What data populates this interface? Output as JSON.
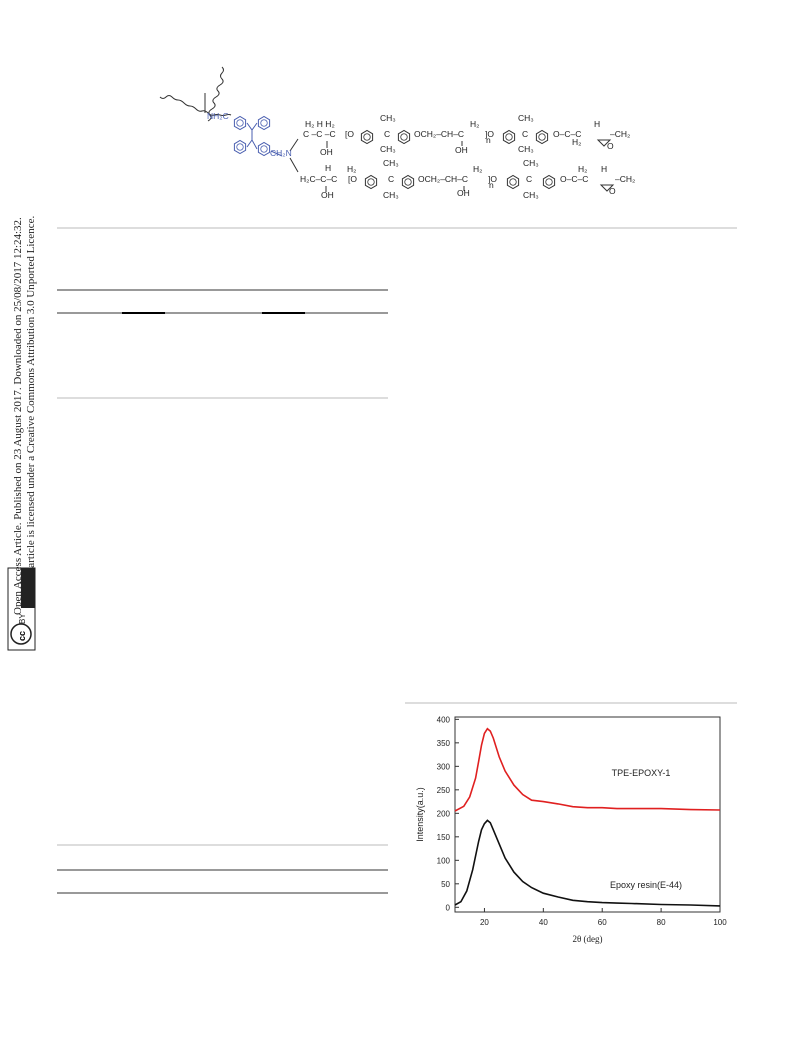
{
  "sidebar": {
    "line1": "Open Access Article. Published on 23 August 2017. Downloaded on 25/08/2017 12:24:32.",
    "line2": "This article is licensed under a Creative Commons Attribution 3.0 Unported Licence.",
    "badge": [
      "cc",
      "BY"
    ]
  },
  "scheme": {
    "labels": [
      "NH₂C",
      "CH₂N",
      "H₂  H  H₂",
      "C –C –C",
      "[O",
      "C",
      "OCH₂–CH–C",
      "]O",
      "C",
      "O–C–C",
      "–CH₂",
      "CH₃",
      "H₂",
      "CH₃",
      "H",
      "OH",
      "CH₃",
      "OH",
      "n",
      "CH₃",
      "H₂",
      "O",
      "H₂C–C–C",
      "[O",
      "C",
      "OCH₂–CH–C",
      "]O",
      "C",
      "O–C–C",
      "–CH₂",
      "H",
      "H₂",
      "CH₃",
      "H₂",
      "CH₃",
      "H₂",
      "H",
      "OH",
      "CH₃",
      "OH",
      "n",
      "CH₃",
      "O"
    ]
  },
  "chart_data": {
    "type": "line",
    "x_label": "2θ (deg)",
    "y_label": "Intensity(a.u.)",
    "annotations": [
      "TPE-EPOXY-1",
      "Epoxy resin(E-44)"
    ],
    "xlim": [
      10,
      100
    ],
    "ylim": [
      -10,
      405
    ],
    "xticks": [
      20,
      40,
      60,
      80,
      100
    ],
    "yticks": [
      0,
      50,
      100,
      150,
      200,
      250,
      300,
      350,
      400
    ],
    "series": [
      {
        "name": "TPE-EPOXY-1",
        "color": "#e02020",
        "x": [
          10,
          13,
          15,
          17,
          18,
          19,
          20,
          21,
          22,
          23,
          25,
          27,
          30,
          33,
          36,
          40,
          45,
          50,
          55,
          60,
          65,
          70,
          80,
          90,
          100
        ],
        "values": [
          205,
          215,
          235,
          275,
          310,
          345,
          370,
          380,
          375,
          360,
          320,
          290,
          260,
          240,
          228,
          225,
          220,
          214,
          212,
          212,
          210,
          210,
          210,
          208,
          207
        ]
      },
      {
        "name": "Epoxy resin(E-44)",
        "color": "#111111",
        "x": [
          10,
          12,
          14,
          16,
          18,
          19,
          20,
          21,
          22,
          23,
          25,
          27,
          30,
          33,
          36,
          40,
          45,
          50,
          55,
          60,
          65,
          70,
          80,
          90,
          100
        ],
        "values": [
          5,
          12,
          35,
          80,
          140,
          165,
          178,
          185,
          180,
          165,
          135,
          105,
          75,
          55,
          42,
          30,
          22,
          15,
          12,
          10,
          9,
          8,
          6,
          5,
          3
        ]
      }
    ]
  }
}
